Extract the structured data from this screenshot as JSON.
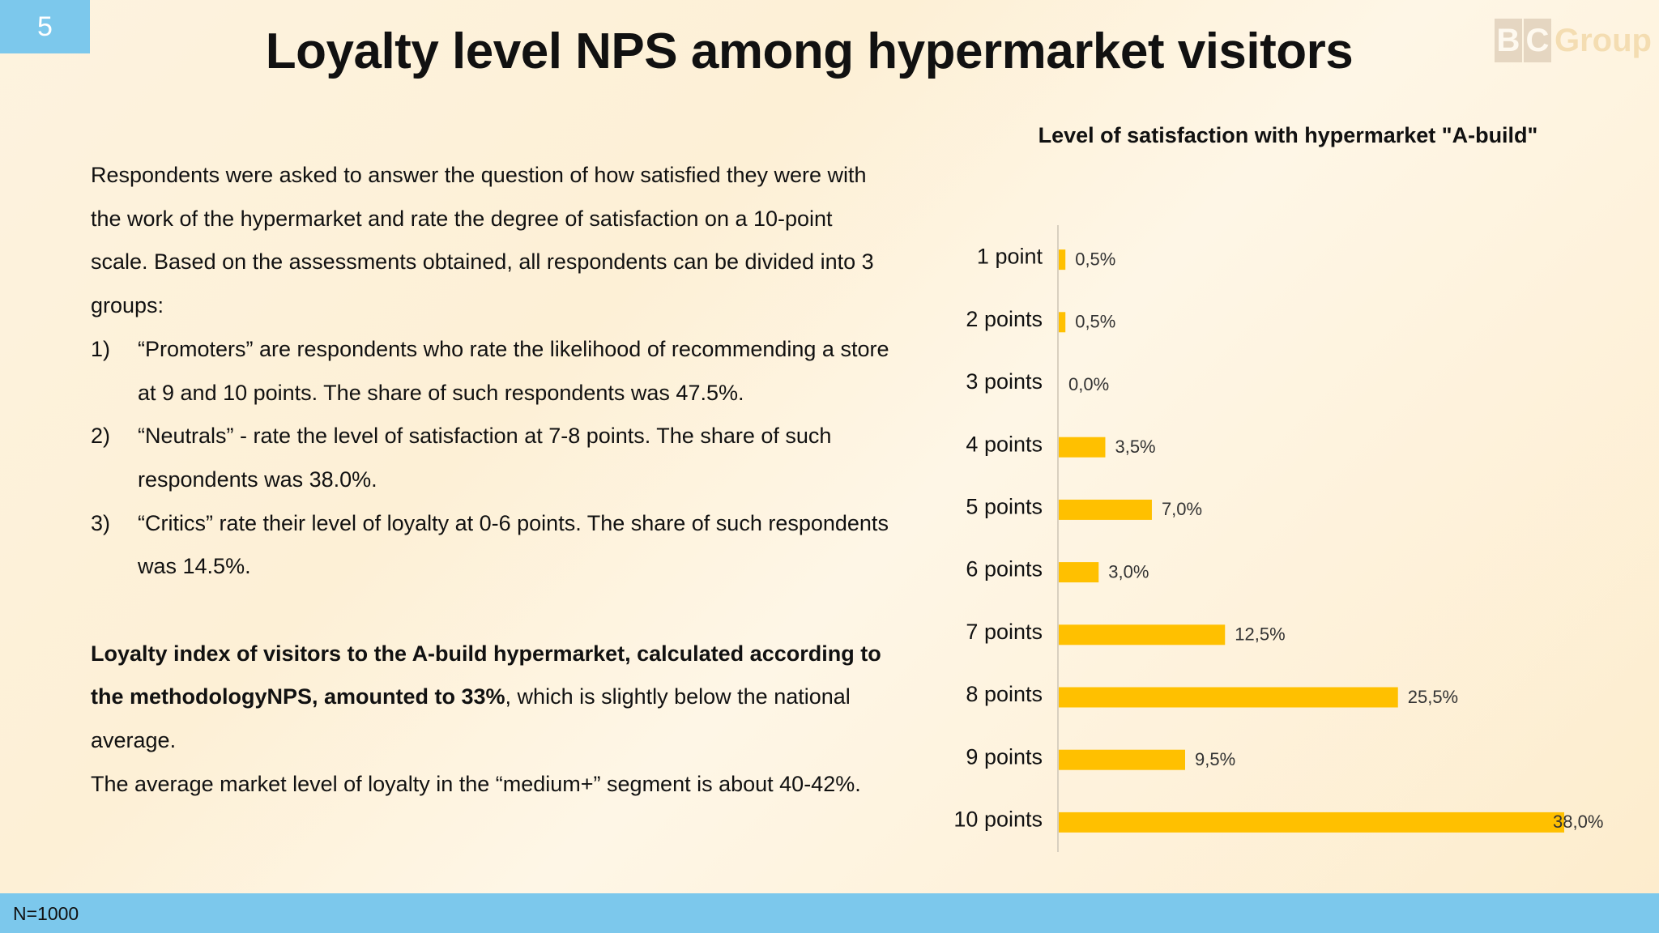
{
  "slide_number": "5",
  "title": "Loyalty level NPS among hypermarket visitors",
  "logo": {
    "first": "B",
    "second": "C",
    "rest": "Group"
  },
  "body": {
    "intro": "Respondents were asked to answer the question of how satisfied they were with the work of the hypermarket and rate the degree of satisfaction on a 10-point scale. Based on the assessments obtained, all respondents can be divided into 3 groups:",
    "items": [
      {
        "num": "1)",
        "text": "“Promoters” are respondents who rate the likelihood of recommending a store at 9 and 10 points. The share of such respondents was 47.5%."
      },
      {
        "num": "2)",
        "text": "“Neutrals” - rate the level of satisfaction at 7-8 points. The share of such respondents was 38.0%."
      },
      {
        "num": "3)",
        "text": "“Critics” rate their level of loyalty at 0-6 points. The share of such respondents was 14.5%."
      }
    ],
    "loyalty_bold": "Loyalty index of visitors to the A-build hypermarket, calculated according to the methodologyNPS, amounted to 33%",
    "loyalty_rest": ", which is slightly below the national average.",
    "market": "The average market level of loyalty in the “medium+” segment is about 40-42%."
  },
  "chart_data": {
    "type": "bar",
    "orientation": "horizontal",
    "title": "Level of satisfaction with hypermarket \"A-build\"",
    "categories": [
      "1 point",
      "2 points",
      "3 points",
      "4 points",
      "5 points",
      "6 points",
      "7 points",
      "8 points",
      "9 points",
      "10 points"
    ],
    "values": [
      0.5,
      0.5,
      0.0,
      3.5,
      7.0,
      3.0,
      12.5,
      25.5,
      9.5,
      38.0
    ],
    "value_labels": [
      "0,5%",
      "0,5%",
      "0,0%",
      "3,5%",
      "7,0%",
      "3,0%",
      "12,5%",
      "25,5%",
      "9,5%",
      "38,0%"
    ],
    "xlim": [
      0,
      38.0
    ],
    "bar_color": "#ffc000",
    "grid": false,
    "legend": "none"
  },
  "footer": {
    "note": "N=1000"
  },
  "colors": {
    "accent": "#7cc8ec",
    "bar": "#ffc000"
  }
}
